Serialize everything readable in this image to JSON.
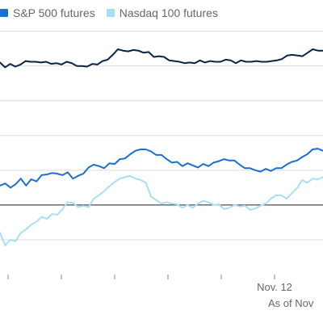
{
  "legend": [
    {
      "label": "S&P 500 futures",
      "color": "#1a6fd1"
    },
    {
      "label": "Nasdaq 100 futures",
      "color": "#a9dff2"
    }
  ],
  "note": "As of Nov",
  "chart_data": {
    "type": "line",
    "x_tick_labels": [
      "",
      "",
      "",
      "",
      "",
      "Nov. 12"
    ],
    "ylim": [
      -1.0,
      2.6
    ],
    "y_gridlines": [
      -0.5,
      0.5,
      1.0,
      1.5,
      2.0,
      2.5
    ],
    "zero_line": 0,
    "grid": true,
    "series": [
      {
        "name": "",
        "color": "#0a2447",
        "values": [
          2.05,
          1.98,
          2.03,
          1.99,
          2.02,
          2.07,
          2.06,
          2.06,
          2.05,
          2.06,
          2.03,
          2.04,
          2.02,
          2.06,
          2.04,
          2.0,
          2.0,
          1.99,
          2.03,
          2.02,
          2.07,
          2.09,
          2.16,
          2.24,
          2.22,
          2.21,
          2.23,
          2.22,
          2.19,
          2.2,
          2.13,
          2.14,
          2.13,
          2.08,
          2.07,
          2.06,
          2.04,
          2.05,
          2.04,
          2.08,
          2.05,
          2.07,
          2.06,
          2.06,
          2.09,
          2.08,
          2.04,
          2.08,
          2.06,
          2.06,
          2.07,
          2.06,
          2.06,
          2.07,
          2.08,
          2.1,
          2.15,
          2.16,
          2.15,
          2.14,
          2.19,
          2.24,
          2.22,
          2.22
        ]
      },
      {
        "name": "S&P 500 futures",
        "color": "#1a6fd1",
        "values": [
          0.28,
          0.31,
          0.25,
          0.3,
          0.38,
          0.28,
          0.37,
          0.34,
          0.43,
          0.44,
          0.46,
          0.45,
          0.43,
          0.47,
          0.38,
          0.42,
          0.45,
          0.54,
          0.58,
          0.56,
          0.53,
          0.6,
          0.59,
          0.66,
          0.67,
          0.73,
          0.78,
          0.8,
          0.8,
          0.77,
          0.72,
          0.72,
          0.66,
          0.61,
          0.62,
          0.56,
          0.6,
          0.57,
          0.54,
          0.59,
          0.56,
          0.61,
          0.63,
          0.66,
          0.64,
          0.64,
          0.58,
          0.53,
          0.53,
          0.5,
          0.48,
          0.52,
          0.49,
          0.53,
          0.53,
          0.58,
          0.62,
          0.64,
          0.69,
          0.73,
          0.8,
          0.81,
          0.78
        ]
      },
      {
        "name": "Nasdaq 100 futures",
        "color": "#a9dff2",
        "values": [
          -0.4,
          -0.58,
          -0.5,
          -0.52,
          -0.4,
          -0.35,
          -0.28,
          -0.24,
          -0.17,
          -0.2,
          -0.13,
          -0.14,
          -0.06,
          0.04,
          0.03,
          -0.03,
          -0.01,
          -0.03,
          0.09,
          0.14,
          0.2,
          0.27,
          0.33,
          0.38,
          0.4,
          0.42,
          0.38,
          0.36,
          0.32,
          0.12,
          0.07,
          0.02,
          0.04,
          0.02,
          0.01,
          -0.04,
          0.0,
          -0.04,
          0.02,
          0.06,
          0.04,
          0.0,
          0.01,
          -0.06,
          -0.04,
          0.0,
          -0.02,
          -0.01,
          -0.07,
          -0.05,
          -0.01,
          0.02,
          0.09,
          0.14,
          0.14,
          0.09,
          0.17,
          0.24,
          0.36,
          0.32,
          0.38,
          0.37,
          0.4
        ]
      }
    ]
  }
}
